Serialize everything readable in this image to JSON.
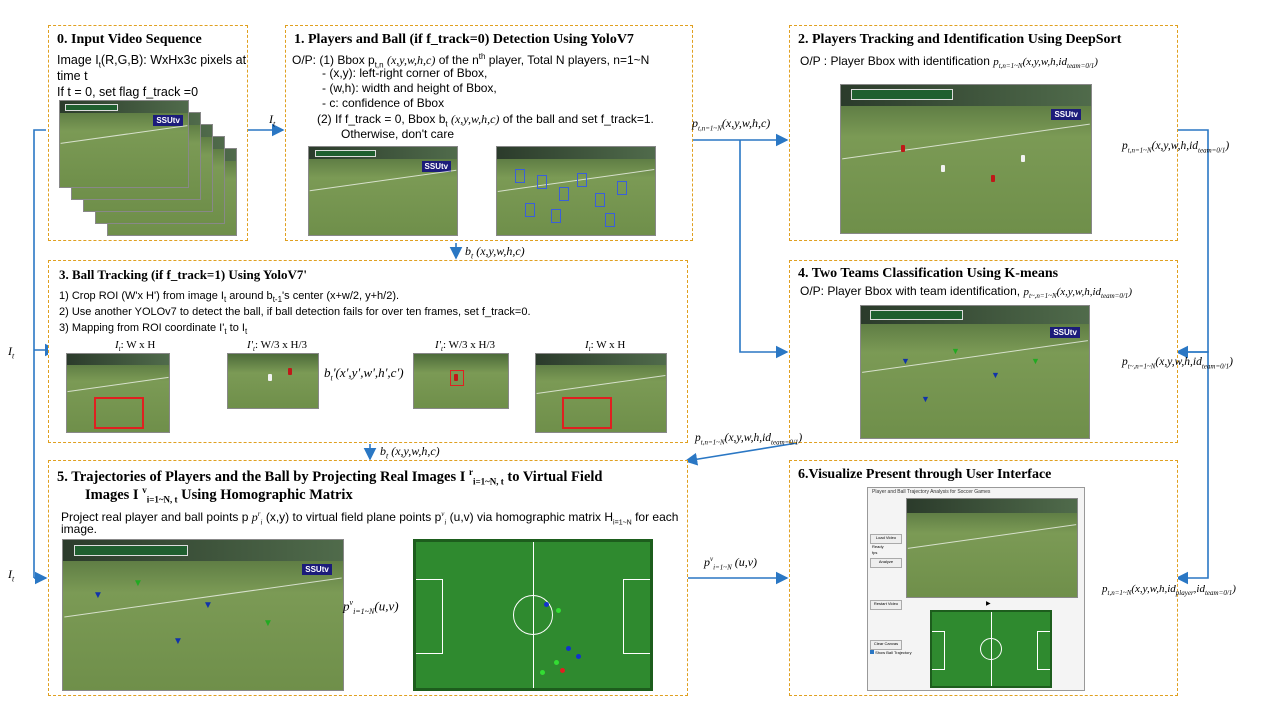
{
  "box0": {
    "title": "0. Input Video Sequence",
    "line1": "Image I",
    "line1_sub": "t",
    "line1_rest": "(R,G,B): WxHx3c pixels at",
    "line2": "time t",
    "line3": "If t = 0, set flag f_track =0"
  },
  "box1": {
    "title": "1. Players and Ball (if f_track=0) Detection Using YoloV7",
    "l1": "O/P: (1) Bbox p",
    "l1_sub": "t,n",
    "l1_math": "(x,y,w,h,c)",
    "l1_rest": "of the n",
    "l1_sup": "th",
    "l1_end": "player, Total N players, n=1~N",
    "l2": "- (x,y): left-right corner of Bbox,",
    "l3": "- (w,h): width and height of Bbox,",
    "l4": "- c: confidence of Bbox",
    "l5": "(2) If f_track = 0, Bbox b",
    "l5_sub": "t",
    "l5_math": "(x,y,w,h,c)",
    "l5_end": "of the ball and set f_track=1.",
    "l6": "Otherwise, don't care"
  },
  "box2": {
    "title": "2. Players Tracking and Identification Using DeepSort",
    "line": "O/P : Player Bbox with identification",
    "math": "p",
    "math_sub": "t,n=1~N",
    "math_rest": "(x,y,w,h,id",
    "math_sub2": "team=0/1",
    "math_end": ")"
  },
  "box3": {
    "title": "3. Ball Tracking (if f_track=1) Using YoloV7'",
    "l1": "1) Crop ROI (W'x H') from image I",
    "l1_sub": "t",
    "l1_rest": "around b",
    "l1_sub2": "t-1",
    "l1_end": "'s center (x+w/2, y+h/2).",
    "l2": "2) Use another YOLOv7 to detect the ball, if ball detection fails for over ten frames, set f_track=0.",
    "l3": "3) Mapping from ROI coordinate I'",
    "l3_sub": "t",
    "l3_end": "to I",
    "l3_sub2": "t",
    "img1": "I",
    "img1_sub": "t",
    "img1_rest": ": W x H",
    "img2": "I'",
    "img2_sub": "t",
    "img2_rest": ": W/3 x H/3",
    "img3": "I'",
    "img3_sub": "t",
    "img3_rest": ": W/3 x H/3",
    "img4": "I",
    "img4_sub": "t",
    "img4_rest": ": W x H",
    "arrow_lbl": "b",
    "arrow_lbl_sub": "t",
    "arrow_lbl_rest": "'(x',y',w',h',c')"
  },
  "box4": {
    "title": "4. Two Teams Classification Using K-means",
    "line": "O/P: Player Bbox with team identification,",
    "math": "p",
    "math_sub": "t~,n=1~N",
    "math_rest": "(x,y,w,h,id",
    "math_sub2": "team=0/1",
    "math_end": ")"
  },
  "box5": {
    "title1": "5. Trajectories of Players and the Ball by Projecting Real Images I",
    "title1_sup": "r",
    "title1_sub": "i=1~N, t",
    "title1_end": "to Virtual Field",
    "title2": "Images I",
    "title2_sup": "v",
    "title2_sub": "i=1~N, t",
    "title2_end": "Using Homographic Matrix",
    "desc1": "Project real player and ball points p",
    "desc1_sup": "r",
    "desc1_sub": "i",
    "desc1_mid": "(x,y) to virtual field plane points p",
    "desc1_sup2": "v",
    "desc1_sub2": "i",
    "desc1_mid2": "(u,v) via homographic matrix H",
    "desc1_sub3": "i=1~N",
    "desc1_end": "for each",
    "desc2": "image.",
    "arrow_lbl": "p",
    "arrow_lbl_sup": "v",
    "arrow_lbl_sub": "i=1~N",
    "arrow_lbl_rest": "(u,v)"
  },
  "box6": {
    "title": "6.Visualize Present through User Interface",
    "gui_title": "Player and Ball Trajectory Analysis for Soccer Games",
    "btn_load": "Load Video",
    "txt_ready": "Ready",
    "txt_fps": "fps",
    "btn_analyze": "Analyze",
    "btn_restart": "Restart Video",
    "btn_clear": "Clear Canvas",
    "chk_traj": "Show Ball Trajectory"
  },
  "arrows": {
    "a_0_1": "I",
    "a_0_1_sub": "t",
    "a_1_3": "b",
    "a_1_3_sub": "t",
    "a_1_3_rest": "(x,y,w,h,c)",
    "a_1_2": "p",
    "a_1_2_sub": "t,n=1~N",
    "a_1_2_rest": "(x,y,w,h,c)",
    "a_2_right": "p",
    "a_2_right_sub": "t,n=1~N",
    "a_2_right_rest": "(x,y,w,h,id",
    "a_2_right_sub2": "team=0/1",
    "a_2_right_end": ")",
    "a_4_right": "p",
    "a_4_right_sub": "t~,n=1~N",
    "a_4_right_rest": "(x,y,w,h,id",
    "a_4_right_sub2": "team=0/1",
    "a_4_right_end": ")",
    "a_4_5": "p",
    "a_4_5_sub": "t,n=1~N",
    "a_4_5_rest": "(x,y,w,h,id",
    "a_4_5_sub2": "team=0/1",
    "a_4_5_end": ")",
    "a_3_5": "b",
    "a_3_5_sub": "t",
    "a_3_5_rest": "(x,y,w,h,c)",
    "a_left_3": "I",
    "a_left_3_sub": "t",
    "a_left_5": "I",
    "a_left_5_sub": "t",
    "a_5_6": "p",
    "a_5_6_sup": "v",
    "a_5_6_sub": "i=1~N",
    "a_5_6_rest": "(u,v)",
    "a_6_right": "p",
    "a_6_right_sub": "t,n=1~N",
    "a_6_right_rest": "(x,y,w,h,id",
    "a_6_right_sub2": "player",
    "a_6_right_mid": ",id",
    "a_6_right_sub3": "team=0/1",
    "a_6_right_end": ")"
  },
  "image_text": {
    "broadcast_tag": "SSUtv"
  },
  "colors": {
    "border": "#e0a020",
    "arrow": "#2a77c4",
    "roi": "#e02020",
    "field": "#2f8a2f"
  }
}
